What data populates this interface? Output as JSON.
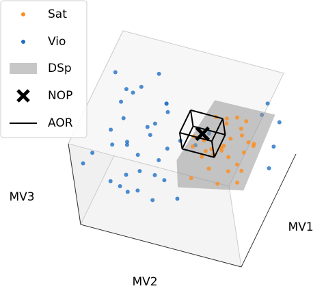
{
  "chart_data": {
    "type": "scatter3d",
    "xlabel": "MV1",
    "ylabel": "MV2",
    "zlabel": "MV3",
    "xlim": [
      0,
      1
    ],
    "ylim": [
      0,
      1
    ],
    "zlim": [
      0,
      1
    ],
    "series": [
      {
        "name": "Sat",
        "color": "#ff8c1a",
        "x": [
          0.35,
          0.4,
          0.45,
          0.5,
          0.55,
          0.6,
          0.65,
          0.7,
          0.75,
          0.8,
          0.85,
          0.38,
          0.48,
          0.58,
          0.68,
          0.78,
          0.42,
          0.52,
          0.62,
          0.72,
          0.82,
          0.36,
          0.46,
          0.56,
          0.66,
          0.76,
          0.86,
          0.44,
          0.54,
          0.64
        ],
        "y": [
          0.6,
          0.7,
          0.8,
          0.65,
          0.75,
          0.85,
          0.62,
          0.72,
          0.82,
          0.68,
          0.78,
          0.88,
          0.58,
          0.66,
          0.74,
          0.84,
          0.9,
          0.64,
          0.7,
          0.8,
          0.6,
          0.76,
          0.86,
          0.56,
          0.68,
          0.78,
          0.72,
          0.82,
          0.6,
          0.9
        ],
        "z": [
          0.4,
          0.5,
          0.45,
          0.55,
          0.6,
          0.5,
          0.35,
          0.65,
          0.4,
          0.55,
          0.5,
          0.45,
          0.6,
          0.4,
          0.5,
          0.35,
          0.55,
          0.65,
          0.45,
          0.6,
          0.5,
          0.4,
          0.55,
          0.6,
          0.35,
          0.45,
          0.5,
          0.65,
          0.4,
          0.55
        ]
      },
      {
        "name": "Vio",
        "color": "#1f6fc4",
        "x": [
          0.1,
          0.2,
          0.3,
          0.4,
          0.5,
          0.6,
          0.7,
          0.8,
          0.9,
          0.15,
          0.25,
          0.35,
          0.45,
          0.55,
          0.65,
          0.75,
          0.85,
          0.05,
          0.95,
          0.12,
          0.22,
          0.32,
          0.42,
          0.52,
          0.62,
          0.72,
          0.82,
          0.92,
          0.18,
          0.28,
          0.38,
          0.48,
          0.58,
          0.68,
          0.78,
          0.88,
          0.08,
          0.98,
          0.3,
          0.6
        ],
        "y": [
          0.1,
          0.2,
          0.3,
          0.4,
          0.15,
          0.25,
          0.35,
          0.45,
          0.05,
          0.5,
          0.12,
          0.22,
          0.32,
          0.42,
          0.08,
          0.18,
          0.28,
          0.38,
          0.48,
          0.02,
          0.55,
          0.14,
          0.24,
          0.34,
          0.44,
          0.04,
          0.95,
          0.9,
          0.26,
          0.36,
          0.46,
          0.06,
          0.16,
          0.96,
          0.92,
          0.98,
          0.3,
          0.2,
          0.4,
          0.1
        ],
        "z": [
          0.8,
          0.3,
          0.6,
          0.2,
          0.9,
          0.5,
          0.7,
          0.1,
          0.4,
          0.85,
          0.25,
          0.65,
          0.15,
          0.95,
          0.45,
          0.75,
          0.35,
          0.55,
          0.05,
          0.6,
          0.3,
          0.8,
          0.2,
          0.7,
          0.4,
          0.9,
          0.85,
          0.15,
          0.5,
          0.1,
          0.65,
          0.35,
          0.95,
          0.25,
          0.75,
          0.55,
          0.45,
          0.6,
          0.9,
          0.2
        ]
      }
    ],
    "surface": {
      "name": "DSp",
      "color": "#999999",
      "x": [
        0.95,
        0.9,
        0.3,
        0.25,
        0.4
      ],
      "y": [
        0.55,
        0.95,
        0.95,
        0.55,
        0.5
      ],
      "z": [
        0.5,
        0.6,
        0.5,
        0.4,
        0.5
      ]
    },
    "point": {
      "name": "NOP",
      "x": 0.6,
      "y": 0.6,
      "z": 0.6
    },
    "box": {
      "name": "AOR",
      "xlim": [
        0.5,
        0.7
      ],
      "ylim": [
        0.5,
        0.7
      ],
      "zlim": [
        0.5,
        0.7
      ]
    }
  }
}
